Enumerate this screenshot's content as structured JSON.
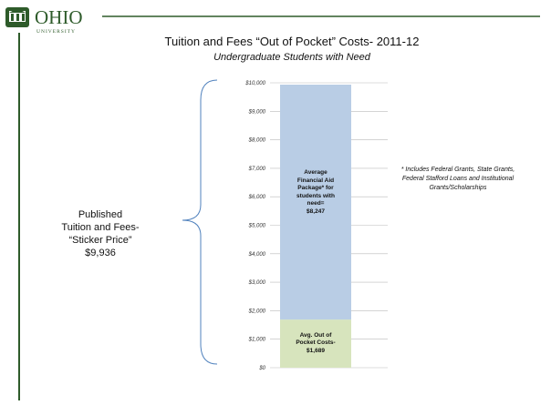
{
  "logo": {
    "name": "OHIO",
    "sub": "UNIVERSITY"
  },
  "chart_data": {
    "type": "stacked_bar",
    "title": "Tuition and Fees “Out of Pocket” Costs- 2011-12",
    "subtitle": "Undergraduate Students with Need",
    "categories": [
      null
    ],
    "series": [
      {
        "name": "Avg. Out of Pocket Costs-",
        "color": "#d7e4bd",
        "values": [
          1689
        ],
        "value_labels": [
          "$1,689"
        ]
      },
      {
        "name": "Average Financial Aid Package* for students with need=",
        "color": "#b9cde5",
        "values": [
          8247
        ],
        "value_labels": [
          "$8,247"
        ]
      }
    ],
    "ylim": [
      0,
      10000
    ],
    "yticks": [
      {
        "value": 0,
        "label": "$0"
      },
      {
        "value": 1000,
        "label": "$1,000"
      },
      {
        "value": 2000,
        "label": "$2,000"
      },
      {
        "value": 3000,
        "label": "$3,000"
      },
      {
        "value": 4000,
        "label": "$4,000"
      },
      {
        "value": 5000,
        "label": "$5,000"
      },
      {
        "value": 6000,
        "label": "$6,000"
      },
      {
        "value": 7000,
        "label": "$7,000"
      },
      {
        "value": 8000,
        "label": "$8,000"
      },
      {
        "value": 9000,
        "label": "$9,000"
      },
      {
        "value": 10000,
        "label": "$10,000"
      }
    ],
    "grid": true,
    "annotation": [
      "Published",
      "Tuition and Fees-",
      "“Sticker Price”",
      "$9,936"
    ],
    "note": "* Includes Federal Grants, State Grants, Federal Stafford Loans and Institutional Grants/Scholarships"
  }
}
